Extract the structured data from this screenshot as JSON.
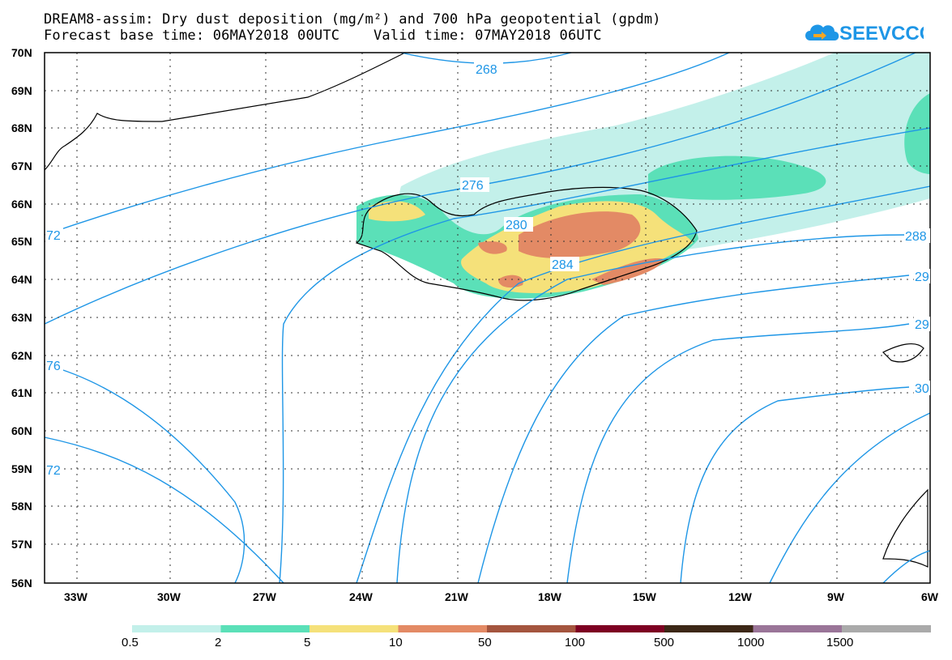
{
  "header": {
    "title_line1": "DREAM8-assim: Dry dust deposition (mg/m²) and 700 hPa geopotential (gpdm)",
    "title_line2": "Forecast base time: 06MAY2018 00UTC    Valid time: 07MAY2018 06UTC"
  },
  "logo": {
    "text": "SEEVCCC",
    "icon": "cloud-arrow-icon",
    "color": "#1e96e6"
  },
  "map": {
    "lat_labels": [
      "70N",
      "69N",
      "68N",
      "67N",
      "66N",
      "65N",
      "64N",
      "63N",
      "62N",
      "61N",
      "60N",
      "59N",
      "58N",
      "57N",
      "56N"
    ],
    "lon_labels": [
      "33W",
      "30W",
      "27W",
      "24W",
      "21W",
      "18W",
      "15W",
      "12W",
      "9W",
      "6W"
    ],
    "contour_labels": [
      "268",
      "276",
      "280",
      "284",
      "288",
      "72",
      "76",
      "72",
      "29",
      "29",
      "30"
    ],
    "contour_color": "#1e96e6",
    "land_outline_color": "#000000"
  },
  "legend": {
    "ticks": [
      "0.5",
      "2",
      "5",
      "10",
      "50",
      "100",
      "500",
      "1000",
      "1500"
    ],
    "colors": [
      "#c3f0ea",
      "#5be0b8",
      "#f5e17a",
      "#e38a65",
      "#a4553e",
      "#7d0022",
      "#3c2716",
      "#9a7598",
      "#aaaaaa"
    ]
  }
}
